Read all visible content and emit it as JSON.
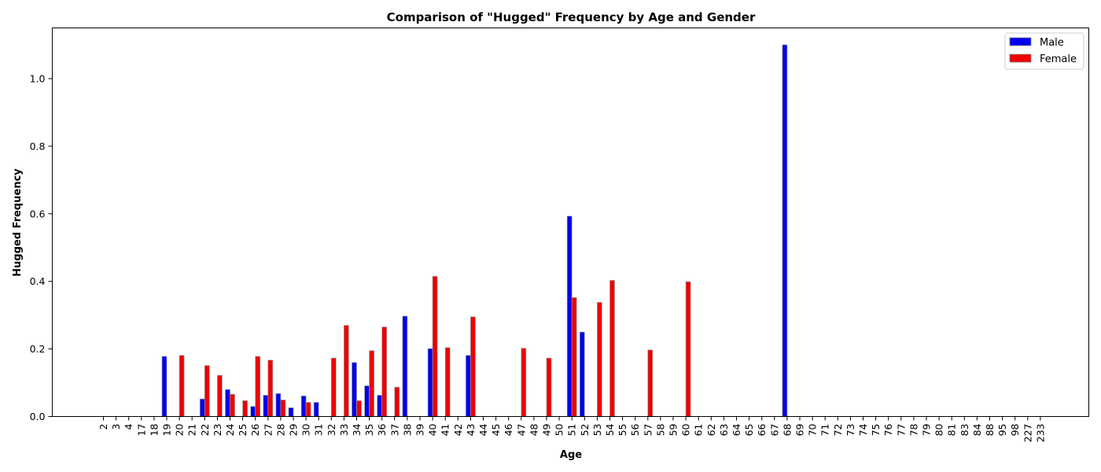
{
  "chart_data": {
    "type": "bar",
    "title": "Comparison of \"Hugged\" Frequency by Age and Gender",
    "xlabel": "Age",
    "ylabel": "Hugged Frequency",
    "ylim": [
      0,
      1.15
    ],
    "yticks": [
      0.0,
      0.2,
      0.4,
      0.6,
      0.8,
      1.0
    ],
    "grid": false,
    "legend_position": "top-right",
    "categories": [
      "2",
      "3",
      "4",
      "17",
      "18",
      "19",
      "20",
      "21",
      "22",
      "23",
      "24",
      "25",
      "26",
      "27",
      "28",
      "29",
      "30",
      "31",
      "32",
      "33",
      "34",
      "35",
      "36",
      "37",
      "38",
      "39",
      "40",
      "41",
      "42",
      "43",
      "44",
      "45",
      "46",
      "47",
      "48",
      "49",
      "50",
      "51",
      "52",
      "53",
      "54",
      "55",
      "56",
      "57",
      "58",
      "59",
      "60",
      "61",
      "62",
      "63",
      "64",
      "65",
      "66",
      "67",
      "68",
      "69",
      "70",
      "71",
      "72",
      "73",
      "74",
      "75",
      "76",
      "77",
      "78",
      "79",
      "80",
      "81",
      "83",
      "84",
      "88",
      "95",
      "98",
      "227",
      "233"
    ],
    "series": [
      {
        "name": "Male",
        "color": "#0000ee",
        "values": [
          0,
          0,
          0,
          0,
          0,
          0.178,
          0,
          0,
          0.052,
          0,
          0.08,
          0,
          0.03,
          0.063,
          0.068,
          0.026,
          0.061,
          0.042,
          0,
          0,
          0.16,
          0.091,
          0.063,
          0,
          0.297,
          0,
          0.201,
          0,
          0,
          0.181,
          0,
          0,
          0,
          0,
          0,
          0,
          0,
          0.593,
          0.25,
          0,
          0,
          0,
          0,
          0,
          0,
          0,
          0,
          0,
          0,
          0,
          0,
          0,
          0,
          0,
          1.1,
          0,
          0,
          0,
          0,
          0,
          0,
          0,
          0,
          0,
          0,
          0,
          0,
          0,
          0,
          0,
          0,
          0,
          0,
          0,
          0
        ]
      },
      {
        "name": "Female",
        "color": "#ee0000",
        "values": [
          0,
          0,
          0,
          0,
          0,
          0,
          0.181,
          0,
          0.151,
          0.122,
          0.066,
          0.047,
          0.178,
          0.167,
          0.049,
          0,
          0.042,
          0,
          0.173,
          0.27,
          0.047,
          0.195,
          0.265,
          0.087,
          0,
          0,
          0.415,
          0.204,
          0,
          0.295,
          0,
          0,
          0,
          0.202,
          0,
          0.173,
          0,
          0.352,
          0,
          0.338,
          0.403,
          0,
          0,
          0.197,
          0,
          0,
          0.399,
          0,
          0,
          0,
          0,
          0,
          0,
          0,
          0,
          0,
          0,
          0,
          0,
          0,
          0,
          0,
          0,
          0,
          0,
          0,
          0,
          0,
          0,
          0,
          0,
          0,
          0,
          0,
          0
        ]
      }
    ]
  }
}
